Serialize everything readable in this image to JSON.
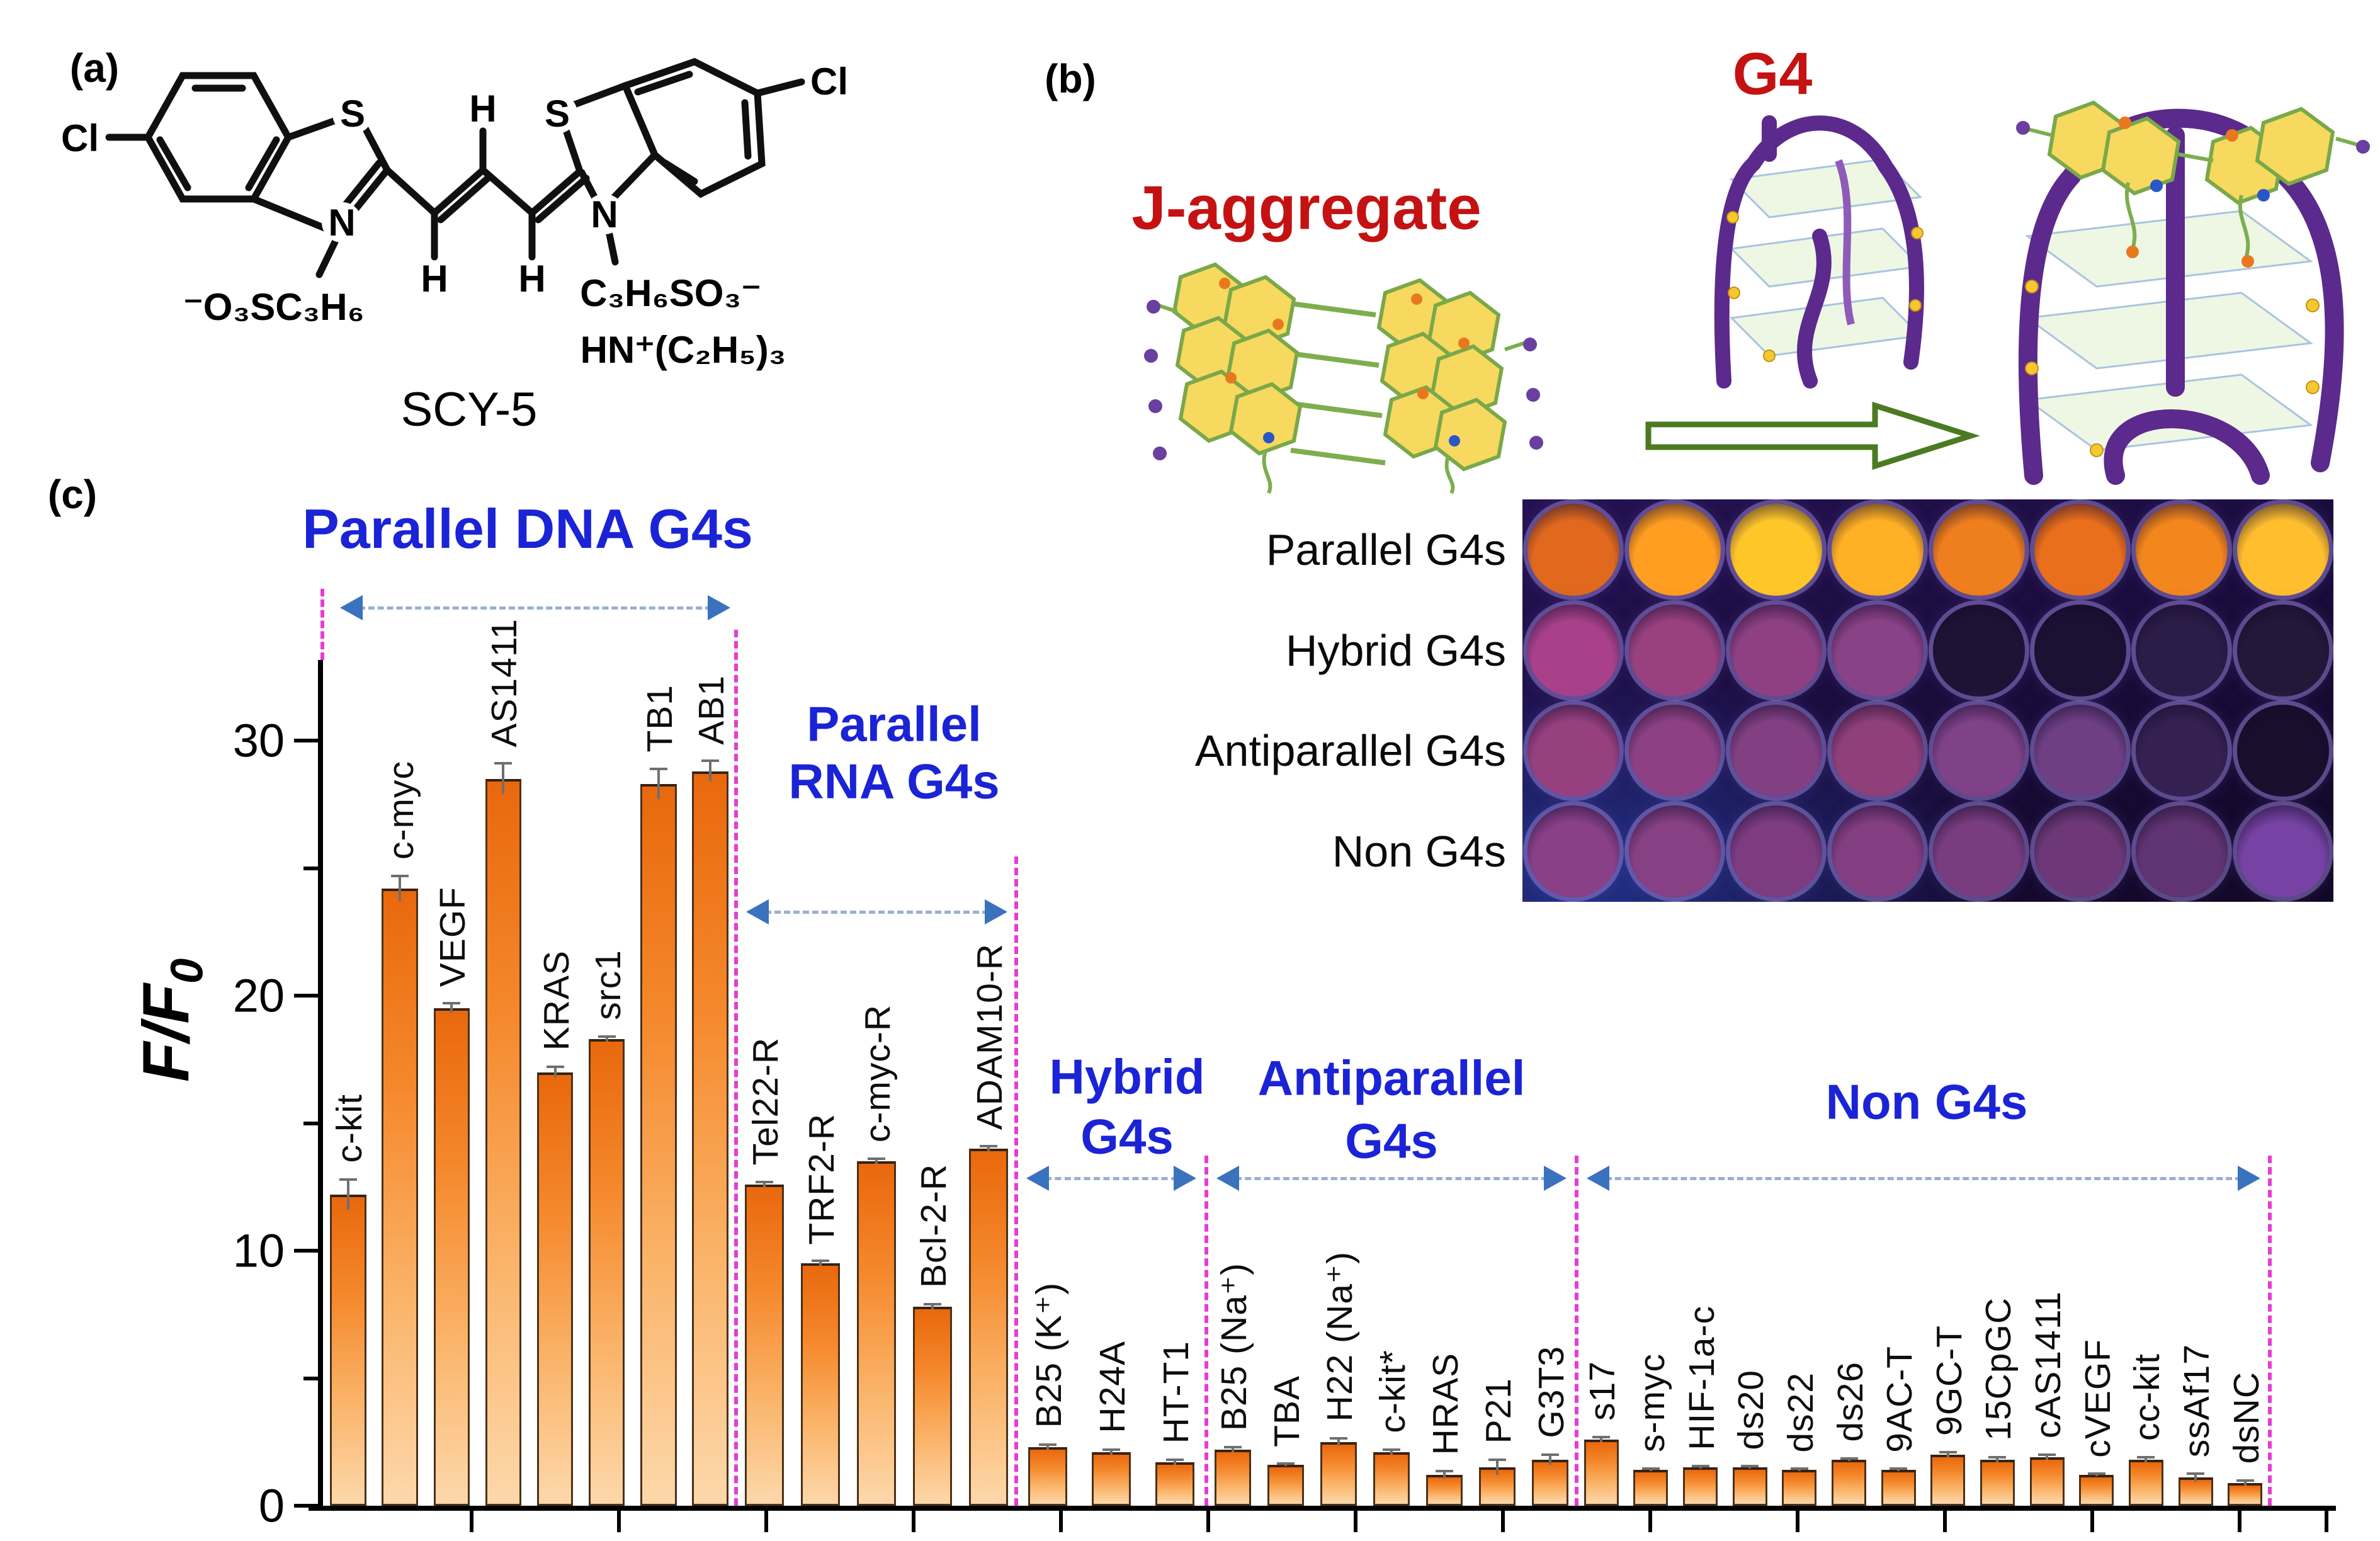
{
  "figure": {
    "panel_a_tag": "(a)",
    "panel_b_tag": "(b)",
    "panel_c_tag": "(c)"
  },
  "panel_a": {
    "compound_name": "SCY-5",
    "atom_cl_left": "Cl",
    "atom_cl_right": "Cl",
    "atom_s_left": "S",
    "atom_s_right": "S",
    "atom_n_left": "N",
    "atom_n_right": "N",
    "h_label_1": "H",
    "h_label_2": "H",
    "h_label_3": "H",
    "chain_left": "⁻O₃SC₃H₆",
    "chain_right_top": "C₃H₆SO₃⁻",
    "chain_right_bottom": "HN⁺(C₂H₅)₃"
  },
  "panel_b": {
    "j_aggregate_label": "J-aggregate",
    "g4_label": "G4",
    "accent_red": "#c41212",
    "ribbon_purple": "#5b2a8c",
    "hexagon_yellow": "#f6d95e",
    "link_green": "#7cae4e"
  },
  "plate": {
    "row_labels": [
      "Parallel G4s",
      "Hybrid G4s",
      "Antiparallel G4s",
      "Non G4s"
    ],
    "well_colors": [
      [
        "#e0691e",
        "#ff9e20",
        "#ffc62a",
        "#ffb024",
        "#ef7e1e",
        "#ea6f1c",
        "#f4861e",
        "#ffbe2e"
      ],
      [
        "#a8418a",
        "#99417f",
        "#8f4083",
        "#8a4287",
        "#1f1335",
        "#1b1133",
        "#2c1c48",
        "#241839"
      ],
      [
        "#97407f",
        "#8d4184",
        "#824083",
        "#8f3f79",
        "#7f4187",
        "#6f3f84",
        "#342152",
        "#190f2d"
      ],
      [
        "#8a4086",
        "#874083",
        "#7d3c80",
        "#823e81",
        "#793c7e",
        "#6e3878",
        "#603472",
        "#7643a4"
      ]
    ]
  },
  "chart_data": {
    "type": "bar",
    "ylabel_main": "F/F",
    "ylabel_sub": "0",
    "ylim": [
      0,
      33
    ],
    "yticks": [
      0,
      10,
      20,
      30
    ],
    "yticks_minor": [
      5,
      15,
      25
    ],
    "grid": false,
    "bar_color_top": "#e9680d",
    "bar_color_bottom": "#fdd8ab",
    "title_color": "#1b23d6",
    "separator_color": "#e73cd3",
    "groups": [
      {
        "title": "Parallel DNA G4s",
        "title_lines": [
          "Parallel DNA G4s"
        ],
        "categories": [
          "c-kit",
          "c-myc",
          "VEGF",
          "AS1411",
          "KRAS",
          "src1",
          "TB1",
          "AB1"
        ],
        "values": [
          12.2,
          24.2,
          19.5,
          28.5,
          17.0,
          18.3,
          28.3,
          28.8
        ],
        "errors": [
          0.6,
          0.5,
          0.2,
          0.6,
          0.2,
          0.1,
          0.6,
          0.4
        ]
      },
      {
        "title": "Parallel RNA G4s",
        "title_lines": [
          "Parallel",
          "RNA G4s"
        ],
        "categories": [
          "Tel22-R",
          "TRF2-R",
          "c-myc-R",
          "Bcl-2-R",
          "ADAM10-R"
        ],
        "values": [
          12.6,
          9.5,
          13.5,
          7.8,
          14.0
        ],
        "errors": [
          0.1,
          0.1,
          0.1,
          0.1,
          0.1
        ]
      },
      {
        "title": "Hybrid G4s",
        "title_lines": [
          "Hybrid",
          "G4s"
        ],
        "categories": [
          "B25 (K⁺)",
          "H24A",
          "HT-T1"
        ],
        "values": [
          2.3,
          2.1,
          1.7
        ],
        "errors": [
          0.1,
          0.1,
          0.1
        ]
      },
      {
        "title": "Antiparallel G4s",
        "title_lines": [
          "Antiparallel",
          "G4s"
        ],
        "categories": [
          "B25 (Na⁺)",
          "TBA",
          "H22 (Na⁺)",
          "c-kit*",
          "HRAS",
          "P21",
          "G3T3"
        ],
        "values": [
          2.2,
          1.6,
          2.5,
          2.1,
          1.2,
          1.5,
          1.8
        ],
        "errors": [
          0.1,
          0.05,
          0.15,
          0.1,
          0.15,
          0.3,
          0.2
        ]
      },
      {
        "title": "Non G4s",
        "title_lines": [
          "Non G4s"
        ],
        "categories": [
          "s17",
          "s-myc",
          "HIF-1a-c",
          "ds20",
          "ds22",
          "ds26",
          "9AC-T",
          "9GC-T",
          "15CpGC",
          "cAS1411",
          "cVEGF",
          "cc-kit",
          "ssAf17",
          "dsNC"
        ],
        "values": [
          2.6,
          1.4,
          1.5,
          1.5,
          1.4,
          1.8,
          1.4,
          2.0,
          1.8,
          1.9,
          1.2,
          1.8,
          1.1,
          0.9
        ],
        "errors": [
          0.1,
          0.05,
          0.05,
          0.05,
          0.05,
          0.05,
          0.05,
          0.1,
          0.1,
          0.1,
          0.05,
          0.1,
          0.15,
          0.1
        ]
      }
    ]
  }
}
